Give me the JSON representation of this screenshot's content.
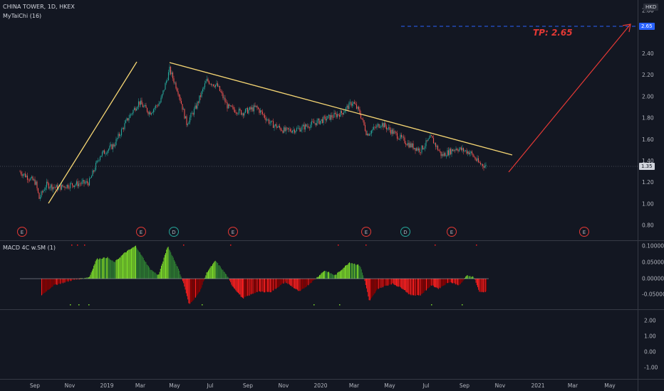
{
  "header": {
    "symbol": "CHINA TOWER, 1D, HKEX",
    "indicator": "MyTaiChi (16)",
    "currency": "HKD"
  },
  "main_pane": {
    "last_price": "1.35",
    "target_price": "2.65",
    "tp_label": "TP: 2.65",
    "y_axis_labels": [
      "2.80",
      "2.65",
      "2.40",
      "2.20",
      "2.00",
      "1.80",
      "1.60",
      "1.40",
      "1.20",
      "1.00",
      "0.80"
    ],
    "event_markers": [
      "E",
      "E",
      "D",
      "E",
      "E",
      "D",
      "E",
      "E"
    ],
    "colors": {
      "up": "#26a69a",
      "down": "#ef5350",
      "trendline": "#f7d774",
      "target_line": "#2962ff",
      "projection": "#e53935"
    }
  },
  "macd_pane": {
    "title": "MACD 4C w.SM (1)",
    "y_axis_labels": [
      "0.10000",
      "0.05000",
      "0.00000",
      "-0.05000"
    ],
    "colors": {
      "pos_strong": "#7cdb2a",
      "pos_weak": "#2e7d32",
      "neg_strong": "#ff1e1e",
      "neg_weak": "#8b0000"
    }
  },
  "lower_pane": {
    "y_axis_labels": [
      "2.00",
      "1.00",
      "0.00",
      "-1.00"
    ]
  },
  "time_axis": {
    "labels": [
      "Sep",
      "Nov",
      "2019",
      "Mar",
      "May",
      "Jul",
      "Sep",
      "Nov",
      "2020",
      "Mar",
      "May",
      "Jul",
      "Sep",
      "Nov",
      "2021",
      "Mar",
      "May"
    ]
  }
}
